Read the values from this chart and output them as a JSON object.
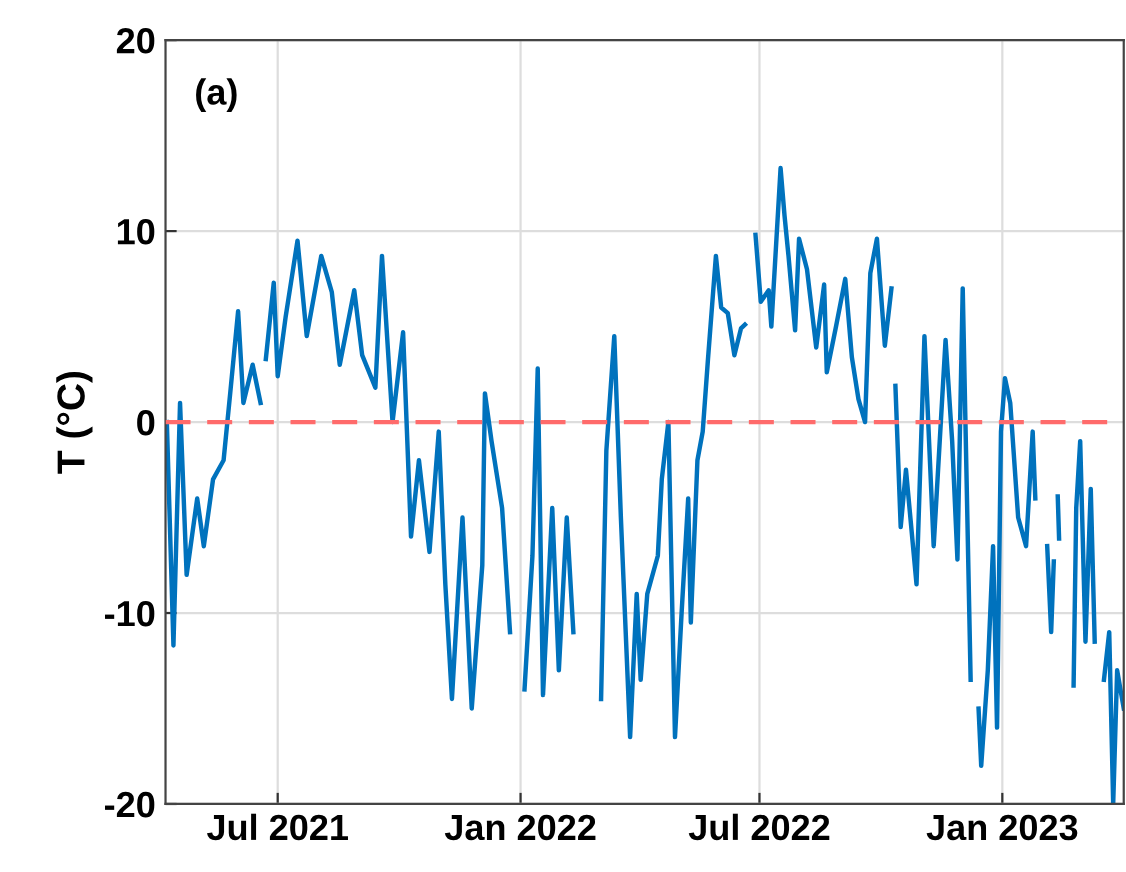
{
  "chart_data": {
    "type": "line",
    "ylabel": "T (°C)",
    "annotations": [
      "(a)"
    ],
    "xlim": [
      "2021-04-07",
      "2023-04-03"
    ],
    "ylim": [
      -20,
      20
    ],
    "yticks": [
      -20,
      -10,
      0,
      10,
      20
    ],
    "xticks": [
      {
        "value": "2021-07-01",
        "label": "Jul 2021"
      },
      {
        "value": "2022-01-01",
        "label": "Jan 2022"
      },
      {
        "value": "2022-07-01",
        "label": "Jul 2022"
      },
      {
        "value": "2023-01-01",
        "label": "Jan 2023"
      }
    ],
    "grid": true,
    "marker": "none",
    "line_style": "solid",
    "ref_lines": [
      {
        "axis": "y",
        "value": 0,
        "color": "#ff6b6b",
        "line_style": "dashed"
      }
    ],
    "series": [
      {
        "color": "#0072bd",
        "x": [
          "2021-04-08",
          "2021-04-13",
          "2021-04-18",
          "2021-04-23",
          "2021-05-01",
          "2021-05-06",
          "2021-05-13",
          "2021-05-21",
          "2021-05-26",
          "2021-06-01",
          "2021-06-05",
          "2021-06-12",
          "2021-06-18",
          "2021-06-20",
          "2021-06-22",
          "2021-06-28",
          "2021-07-01",
          "2021-07-07",
          "2021-07-16",
          "2021-07-23",
          "2021-08-03",
          "2021-08-11",
          "2021-08-17",
          "2021-08-28",
          "2021-09-03",
          "2021-09-13",
          "2021-09-18",
          "2021-09-26",
          "2021-10-04",
          "2021-10-10",
          "2021-10-16",
          "2021-10-24",
          "2021-10-31",
          "2021-11-05",
          "2021-11-10",
          "2021-11-18",
          "2021-11-25",
          "2021-12-03",
          "2021-12-05",
          "2021-12-10",
          "2021-12-18",
          "2021-12-24",
          "2021-12-30",
          "2022-01-04",
          "2022-01-10",
          "2022-01-14",
          "2022-01-18",
          "2022-01-25",
          "2022-01-30",
          "2022-02-05",
          "2022-02-10",
          "2022-02-20",
          "2022-03-03",
          "2022-03-07",
          "2022-03-13",
          "2022-03-18",
          "2022-03-25",
          "2022-03-30",
          "2022-04-02",
          "2022-04-07",
          "2022-04-15",
          "2022-04-18",
          "2022-04-23",
          "2022-04-28",
          "2022-05-03",
          "2022-05-08",
          "2022-05-10",
          "2022-05-15",
          "2022-05-19",
          "2022-05-23",
          "2022-05-29",
          "2022-06-02",
          "2022-06-07",
          "2022-06-12",
          "2022-06-17",
          "2022-06-20",
          "2022-06-24",
          "2022-06-28",
          "2022-07-02",
          "2022-07-08",
          "2022-07-10",
          "2022-07-17",
          "2022-07-20",
          "2022-07-23",
          "2022-07-28",
          "2022-07-31",
          "2022-08-06",
          "2022-08-13",
          "2022-08-19",
          "2022-08-21",
          "2022-08-28",
          "2022-09-04",
          "2022-09-09",
          "2022-09-14",
          "2022-09-19",
          "2022-09-23",
          "2022-09-28",
          "2022-10-04",
          "2022-10-09",
          "2022-10-10",
          "2022-10-12",
          "2022-10-16",
          "2022-10-20",
          "2022-10-28",
          "2022-11-03",
          "2022-11-10",
          "2022-11-19",
          "2022-11-24",
          "2022-11-28",
          "2022-12-02",
          "2022-12-08",
          "2022-12-11",
          "2022-12-14",
          "2022-12-16",
          "2022-12-21",
          "2022-12-25",
          "2022-12-28",
          "2022-12-31",
          "2023-01-03",
          "2023-01-07",
          "2023-01-13",
          "2023-01-19",
          "2023-01-24",
          "2023-01-26",
          "2023-01-30",
          "2023-02-04",
          "2023-02-07",
          "2023-02-09",
          "2023-02-10",
          "2023-02-12",
          "2023-02-13",
          "2023-02-18",
          "2023-02-24",
          "2023-02-26",
          "2023-03-01",
          "2023-03-05",
          "2023-03-09",
          "2023-03-12",
          "2023-03-15",
          "2023-03-19",
          "2023-03-23",
          "2023-03-26",
          "2023-03-29",
          "2023-04-03"
        ],
        "values": [
          0,
          -11.7,
          1,
          -8,
          -4,
          -6.5,
          -3,
          -2,
          1.5,
          5.8,
          1,
          3,
          1,
          null,
          3.3,
          7.3,
          2.4,
          5.5,
          9.5,
          4.5,
          8.7,
          6.8,
          3,
          6.9,
          3.5,
          1.8,
          8.7,
          0,
          4.7,
          -6,
          -2,
          -6.8,
          -0.5,
          -8.5,
          -14.5,
          -5,
          -15,
          -7.5,
          1.5,
          -1,
          -4.5,
          -11,
          null,
          -14,
          -7,
          2.8,
          -14.3,
          -4.5,
          -13,
          -5,
          -11,
          null,
          -14.5,
          -1.5,
          4.5,
          -5,
          -16.5,
          -9,
          -13.5,
          -9,
          -7,
          -3,
          0,
          -16.5,
          -10,
          -4,
          -10.5,
          -2,
          -0.5,
          3.3,
          8.7,
          6,
          5.7,
          3.5,
          4.9,
          5.1,
          null,
          9.8,
          6.3,
          6.9,
          5,
          13.3,
          10.8,
          8.7,
          4.8,
          9.6,
          8,
          3.9,
          7.2,
          2.6,
          5,
          7.5,
          3.4,
          1.2,
          0,
          7.8,
          9.6,
          4,
          7,
          null,
          1.9,
          -5.5,
          -2.5,
          -8.5,
          4.5,
          -6.5,
          4.3,
          -1,
          -7.2,
          7,
          -13.5,
          null,
          -15,
          -18,
          -13,
          -6.5,
          -16,
          -0.5,
          2.3,
          1,
          -5,
          -6.5,
          -0.5,
          -4,
          null,
          -6.5,
          -11,
          -7.3,
          null,
          -3.9,
          -6.1,
          null,
          -13.8,
          -4.5,
          -1,
          -11.5,
          -3.5,
          -11.5,
          null,
          -13.5,
          -11,
          -20,
          -13,
          -15
        ]
      }
    ]
  }
}
